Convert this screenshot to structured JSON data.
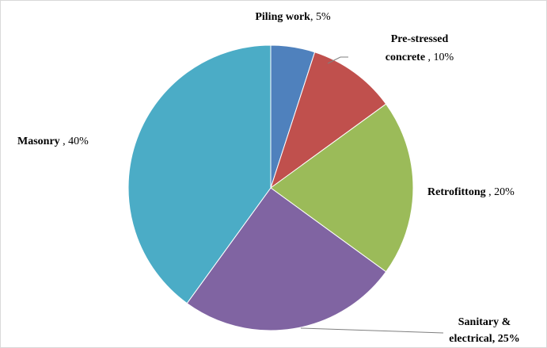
{
  "chart_data": {
    "type": "pie",
    "start_angle_deg": 0,
    "direction": "clockwise",
    "slices": [
      {
        "name": "Piling work",
        "value": 5,
        "color": "#4f81bd",
        "label_name": "Piling work",
        "label_value": ", 5%"
      },
      {
        "name": "Pre-stressed concrete",
        "value": 10,
        "color": "#c0504d",
        "label_line1": "Pre-stressed",
        "label_name2": "concrete",
        "label_value": " , 10%"
      },
      {
        "name": "Retrofittong",
        "value": 20,
        "color": "#9bbb59",
        "label_name": "Retrofittong",
        "label_value": " , 20%"
      },
      {
        "name": "Sanitary & electrical",
        "value": 25,
        "color": "#8064a2",
        "label_line1": "Sanitary &",
        "label_line2": "electrical, 25%"
      },
      {
        "name": "Masonry",
        "value": 40,
        "color": "#4bacc6",
        "label_name": "Masonry",
        "label_value": " , 40%"
      }
    ]
  }
}
